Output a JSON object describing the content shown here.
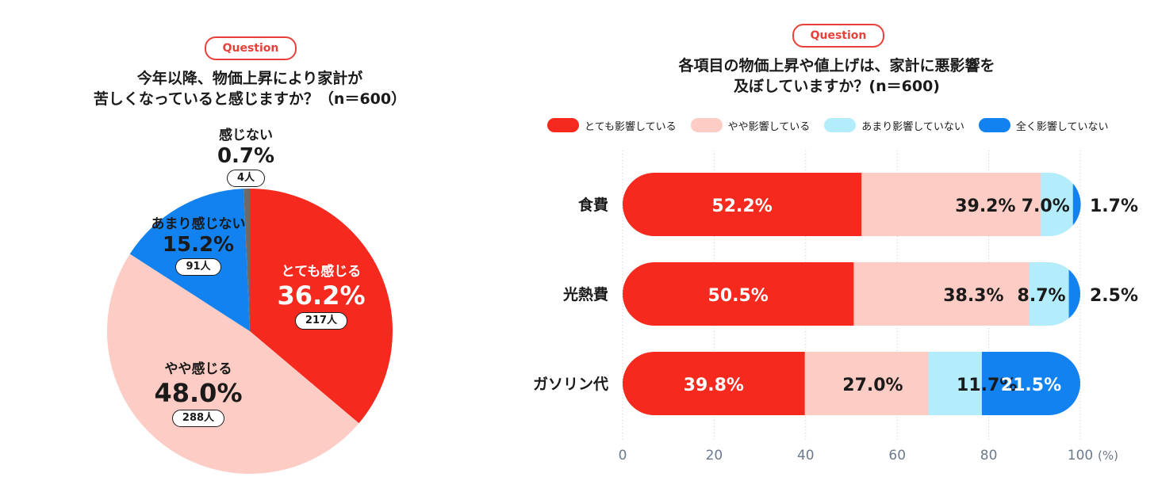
{
  "left": {
    "badge": "Question",
    "title_line1": "今年以降、物価上昇により家計が",
    "title_line2": "苦しくなっていると感じますか？（n＝600）",
    "chart_data": {
      "type": "pie",
      "slices": [
        {
          "name": "とても感じる",
          "value": 36.2,
          "label": "36.2%",
          "count": "217人",
          "color": "#f5291e"
        },
        {
          "name": "やや感じる",
          "value": 48.0,
          "label": "48.0%",
          "count": "288人",
          "color": "#fdccc4"
        },
        {
          "name": "あまり感じない",
          "value": 15.2,
          "label": "15.2%",
          "count": "91人",
          "color": "#1282f0"
        },
        {
          "name": "感じない",
          "value": 0.7,
          "label": "0.7%",
          "count": "4人",
          "color": "#6b6b6b"
        }
      ]
    }
  },
  "right": {
    "badge": "Question",
    "title_line1": "各項目の物価上昇や値上げは、家計に悪影響を",
    "title_line2": "及ぼしていますか？(n＝600)",
    "chart_data": {
      "type": "bar",
      "orientation": "horizontal",
      "stacked": true,
      "categories": [
        "食費",
        "光熱費",
        "ガソリン代"
      ],
      "series": [
        {
          "name": "とても影響している",
          "values": [
            52.2,
            50.5,
            39.8
          ],
          "labels": [
            "52.2%",
            "50.5%",
            "39.8%"
          ],
          "color": "#f5291e"
        },
        {
          "name": "やや影響している",
          "values": [
            39.2,
            38.3,
            27.0
          ],
          "labels": [
            "39.2%",
            "38.3%",
            "27.0%"
          ],
          "color": "#fdccc4"
        },
        {
          "name": "あまり影響していない",
          "values": [
            7.0,
            8.7,
            11.7
          ],
          "labels": [
            "7.0%",
            "8.7%",
            "11.7%"
          ],
          "color": "#b3ecfb"
        },
        {
          "name": "全く影響していない",
          "values": [
            1.7,
            2.5,
            21.5
          ],
          "labels": [
            "1.7%",
            "2.5%",
            "21.5%"
          ],
          "color": "#1282f0"
        }
      ],
      "xlim": [
        0,
        100
      ],
      "xticks": [
        "0",
        "20",
        "40",
        "60",
        "80",
        "100"
      ],
      "unit": "(%)",
      "legend_position": "top",
      "grid": true
    }
  }
}
